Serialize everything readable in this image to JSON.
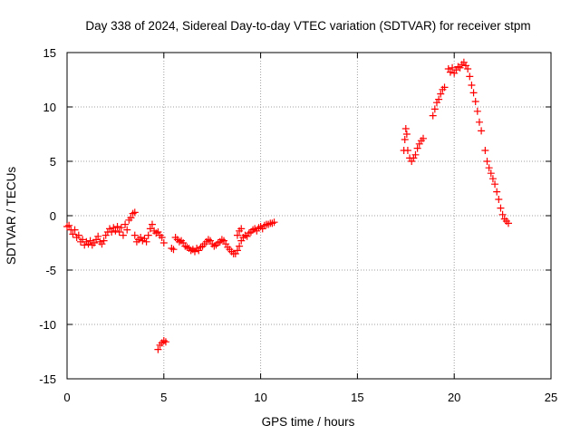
{
  "chart_data": {
    "type": "scatter",
    "title": "Day 338 of 2024, Sidereal Day-to-day VTEC variation (SDTVAR) for receiver stpm",
    "xlabel": "GPS time / hours",
    "ylabel": "SDTVAR / TECUs",
    "xlim": [
      0,
      25
    ],
    "ylim": [
      -15,
      15
    ],
    "xticks": [
      0,
      5,
      10,
      15,
      20,
      25
    ],
    "yticks": [
      -15,
      -10,
      -5,
      0,
      5,
      10,
      15
    ],
    "xtick_labels": [
      "0",
      "5",
      "10",
      "15",
      "20",
      "25"
    ],
    "ytick_labels": [
      "-15",
      "-10",
      "-5",
      "0",
      "5",
      "10",
      "15"
    ],
    "grid": true,
    "marker": "+",
    "color": "#ff0000",
    "series": [
      {
        "name": "SDTVAR",
        "points": [
          [
            0.0,
            -1.0
          ],
          [
            0.1,
            -0.9
          ],
          [
            0.2,
            -1.3
          ],
          [
            0.3,
            -1.7
          ],
          [
            0.4,
            -1.3
          ],
          [
            0.5,
            -2.0
          ],
          [
            0.6,
            -1.8
          ],
          [
            0.7,
            -2.4
          ],
          [
            0.8,
            -2.2
          ],
          [
            0.9,
            -2.7
          ],
          [
            1.0,
            -2.4
          ],
          [
            1.1,
            -2.6
          ],
          [
            1.2,
            -2.3
          ],
          [
            1.3,
            -2.7
          ],
          [
            1.4,
            -2.5
          ],
          [
            1.5,
            -2.2
          ],
          [
            1.6,
            -1.9
          ],
          [
            1.7,
            -2.4
          ],
          [
            1.8,
            -2.6
          ],
          [
            1.9,
            -2.3
          ],
          [
            2.0,
            -1.8
          ],
          [
            2.1,
            -1.5
          ],
          [
            2.2,
            -1.2
          ],
          [
            2.3,
            -1.5
          ],
          [
            2.4,
            -1.1
          ],
          [
            2.5,
            -1.4
          ],
          [
            2.6,
            -1.0
          ],
          [
            2.7,
            -1.5
          ],
          [
            2.8,
            -1.1
          ],
          [
            2.9,
            -1.8
          ],
          [
            3.0,
            -0.8
          ],
          [
            3.1,
            -1.3
          ],
          [
            3.2,
            -0.4
          ],
          [
            3.3,
            -0.2
          ],
          [
            3.4,
            0.2
          ],
          [
            3.5,
            0.3
          ],
          [
            3.5,
            -1.8
          ],
          [
            3.6,
            -2.4
          ],
          [
            3.7,
            -2.2
          ],
          [
            3.8,
            -2.0
          ],
          [
            3.9,
            -2.3
          ],
          [
            4.0,
            -2.1
          ],
          [
            4.1,
            -2.4
          ],
          [
            4.2,
            -1.8
          ],
          [
            4.3,
            -1.2
          ],
          [
            4.4,
            -0.8
          ],
          [
            4.5,
            -1.4
          ],
          [
            4.6,
            -1.6
          ],
          [
            4.7,
            -1.5
          ],
          [
            4.8,
            -1.8
          ],
          [
            4.9,
            -2.0
          ],
          [
            5.0,
            -2.5
          ],
          [
            5.4,
            -3.0
          ],
          [
            5.5,
            -3.1
          ],
          [
            5.6,
            -2.0
          ],
          [
            5.7,
            -2.2
          ],
          [
            5.8,
            -2.4
          ],
          [
            5.9,
            -2.3
          ],
          [
            6.0,
            -2.5
          ],
          [
            6.1,
            -2.8
          ],
          [
            6.2,
            -2.9
          ],
          [
            6.3,
            -3.0
          ],
          [
            6.4,
            -3.2
          ],
          [
            6.5,
            -3.1
          ],
          [
            6.6,
            -3.3
          ],
          [
            6.7,
            -3.0
          ],
          [
            6.8,
            -3.2
          ],
          [
            6.9,
            -2.9
          ],
          [
            7.0,
            -2.8
          ],
          [
            7.1,
            -2.6
          ],
          [
            7.2,
            -2.4
          ],
          [
            7.3,
            -2.2
          ],
          [
            7.4,
            -2.3
          ],
          [
            7.5,
            -2.6
          ],
          [
            7.6,
            -2.8
          ],
          [
            7.7,
            -2.7
          ],
          [
            7.8,
            -2.5
          ],
          [
            7.9,
            -2.4
          ],
          [
            8.0,
            -2.2
          ],
          [
            8.1,
            -2.3
          ],
          [
            8.2,
            -2.6
          ],
          [
            8.3,
            -2.9
          ],
          [
            8.4,
            -3.1
          ],
          [
            8.5,
            -3.3
          ],
          [
            8.6,
            -3.5
          ],
          [
            8.7,
            -3.5
          ],
          [
            8.8,
            -3.2
          ],
          [
            8.9,
            -2.8
          ],
          [
            9.0,
            -2.3
          ],
          [
            9.1,
            -2.0
          ],
          [
            9.2,
            -1.8
          ],
          [
            9.3,
            -1.9
          ],
          [
            9.4,
            -1.6
          ],
          [
            9.5,
            -1.5
          ],
          [
            9.6,
            -1.3
          ],
          [
            9.7,
            -1.2
          ],
          [
            9.8,
            -1.4
          ],
          [
            9.9,
            -1.1
          ],
          [
            10.0,
            -1.0
          ],
          [
            10.1,
            -1.2
          ],
          [
            10.2,
            -0.9
          ],
          [
            10.3,
            -0.8
          ],
          [
            10.4,
            -0.8
          ],
          [
            10.5,
            -0.7
          ],
          [
            10.6,
            -0.7
          ],
          [
            10.7,
            -0.6
          ],
          [
            8.8,
            -1.8
          ],
          [
            8.9,
            -1.4
          ],
          [
            9.0,
            -1.2
          ],
          [
            4.7,
            -12.3
          ],
          [
            4.8,
            -11.9
          ],
          [
            4.9,
            -11.7
          ],
          [
            5.0,
            -11.5
          ],
          [
            5.1,
            -11.6
          ],
          [
            17.4,
            6.0
          ],
          [
            17.45,
            7.0
          ],
          [
            17.5,
            8.0
          ],
          [
            17.55,
            7.5
          ],
          [
            17.6,
            6.0
          ],
          [
            17.7,
            5.3
          ],
          [
            17.8,
            5.0
          ],
          [
            17.9,
            5.3
          ],
          [
            18.0,
            5.6
          ],
          [
            18.1,
            6.2
          ],
          [
            18.2,
            6.6
          ],
          [
            18.3,
            6.9
          ],
          [
            18.4,
            7.1
          ],
          [
            18.9,
            9.2
          ],
          [
            19.0,
            9.8
          ],
          [
            19.1,
            10.4
          ],
          [
            19.2,
            10.7
          ],
          [
            19.3,
            11.2
          ],
          [
            19.4,
            11.6
          ],
          [
            19.5,
            11.8
          ],
          [
            19.7,
            13.5
          ],
          [
            19.8,
            13.2
          ],
          [
            19.9,
            13.6
          ],
          [
            20.0,
            13.1
          ],
          [
            20.1,
            13.4
          ],
          [
            20.2,
            13.7
          ],
          [
            20.3,
            13.6
          ],
          [
            20.4,
            13.9
          ],
          [
            20.5,
            14.1
          ],
          [
            20.6,
            13.8
          ],
          [
            20.7,
            13.5
          ],
          [
            20.8,
            12.8
          ],
          [
            20.9,
            12.0
          ],
          [
            21.0,
            11.3
          ],
          [
            21.1,
            10.5
          ],
          [
            21.2,
            9.6
          ],
          [
            21.3,
            8.6
          ],
          [
            21.4,
            7.8
          ],
          [
            21.6,
            6.0
          ],
          [
            21.7,
            5.0
          ],
          [
            21.8,
            4.4
          ],
          [
            21.9,
            3.9
          ],
          [
            22.0,
            3.4
          ],
          [
            22.1,
            2.9
          ],
          [
            22.2,
            2.2
          ],
          [
            22.3,
            1.5
          ],
          [
            22.4,
            0.7
          ],
          [
            22.5,
            0.1
          ],
          [
            22.6,
            -0.3
          ],
          [
            22.7,
            -0.5
          ],
          [
            22.8,
            -0.7
          ]
        ]
      }
    ]
  }
}
